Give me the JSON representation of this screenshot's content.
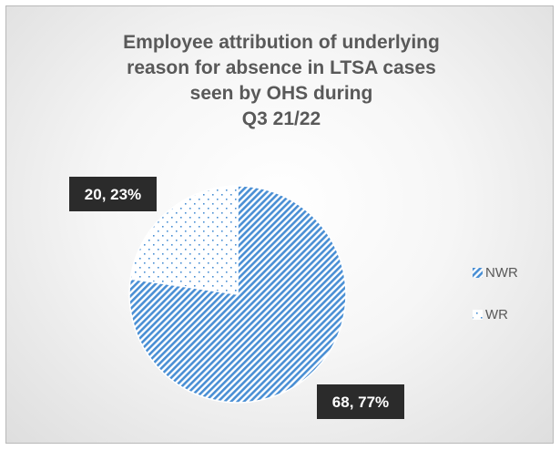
{
  "chart_data": {
    "type": "pie",
    "title_lines": [
      "Employee attribution of underlying",
      "reason for absence in LTSA cases",
      "seen by OHS during",
      "Q3 21/22"
    ],
    "slices": [
      {
        "name": "NWR",
        "value": 68,
        "percent": "77%",
        "label": "68, 77%",
        "color": "#4a8fd4",
        "pattern": "diagonal-stripes"
      },
      {
        "name": "WR",
        "value": 20,
        "percent": "23%",
        "label": "20, 23%",
        "color": "#4a8fd4",
        "pattern": "dots"
      }
    ],
    "legend": {
      "placement": "right",
      "entries": [
        "NWR",
        "WR"
      ]
    },
    "data_label_style": {
      "background": "#2b2b2b",
      "text_color": "#ffffff"
    }
  }
}
